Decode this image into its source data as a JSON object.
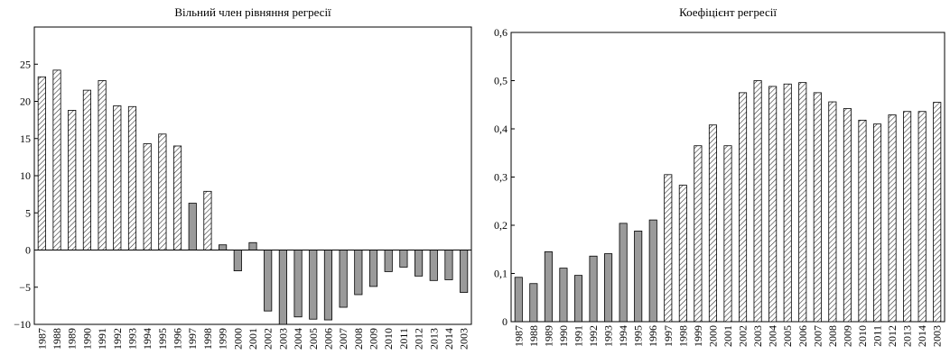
{
  "colors": {
    "grey_bar": "#9a9a9a",
    "hatch_stroke": "#333333",
    "axis": "#000000",
    "background": "#ffffff"
  },
  "chart_data": [
    {
      "type": "bar",
      "title": "Вільний член рівняння регресії",
      "xlabel": "",
      "ylabel": "",
      "ylim": [
        -10,
        30
      ],
      "yticks": [
        -10,
        -5,
        0,
        5,
        10,
        15,
        20,
        25
      ],
      "ytick_labels": [
        "−10",
        "−5",
        "0",
        "5",
        "10",
        "15",
        "20",
        "25"
      ],
      "grid": false,
      "categories": [
        "1987",
        "1988",
        "1989",
        "1990",
        "1991",
        "1992",
        "1993",
        "1994",
        "1995",
        "1996",
        "1997",
        "1998",
        "1999",
        "2000",
        "2001",
        "2002",
        "2003",
        "2004",
        "2005",
        "2006",
        "2007",
        "2008",
        "2009",
        "2010",
        "2011",
        "2012",
        "2013",
        "2014",
        "2003"
      ],
      "values": [
        23.3,
        24.2,
        18.8,
        21.5,
        22.8,
        19.4,
        19.3,
        14.3,
        15.6,
        14.0,
        6.3,
        7.9,
        0.7,
        -2.8,
        1.0,
        -8.2,
        -10.0,
        -9.0,
        -9.3,
        -9.4,
        -7.7,
        -6.0,
        -4.9,
        -2.9,
        -2.3,
        -3.5,
        -4.1,
        -4.0,
        -5.7
      ],
      "fills": [
        "hatched",
        "hatched",
        "hatched",
        "hatched",
        "hatched",
        "hatched",
        "hatched",
        "hatched",
        "hatched",
        "hatched",
        "grey",
        "hatched",
        "grey",
        "grey",
        "grey",
        "grey",
        "grey",
        "grey",
        "grey",
        "grey",
        "grey",
        "grey",
        "grey",
        "grey",
        "grey",
        "grey",
        "grey",
        "grey",
        "grey"
      ]
    },
    {
      "type": "bar",
      "title": "Коефіцієнт регресії",
      "xlabel": "",
      "ylabel": "",
      "ylim": [
        0,
        0.6
      ],
      "yticks": [
        0,
        0.1,
        0.2,
        0.3,
        0.4,
        0.5,
        0.6
      ],
      "ytick_labels": [
        "0",
        "0,1",
        "0,2",
        "0,3",
        "0,4",
        "0,5",
        "0,6"
      ],
      "grid": false,
      "categories": [
        "1987",
        "1988",
        "1989",
        "1990",
        "1991",
        "1992",
        "1993",
        "1994",
        "1995",
        "1996",
        "1997",
        "1998",
        "1999",
        "2000",
        "2001",
        "2002",
        "2003",
        "2004",
        "2005",
        "2006",
        "2007",
        "2008",
        "2009",
        "2010",
        "2011",
        "2012",
        "2013",
        "2014",
        "2003"
      ],
      "values": [
        0.092,
        0.079,
        0.145,
        0.111,
        0.096,
        0.136,
        0.141,
        0.204,
        0.188,
        0.211,
        0.305,
        0.283,
        0.365,
        0.408,
        0.365,
        0.475,
        0.5,
        0.488,
        0.493,
        0.496,
        0.475,
        0.456,
        0.442,
        0.418,
        0.41,
        0.429,
        0.436,
        0.436,
        0.455
      ],
      "fills": [
        "grey",
        "grey",
        "grey",
        "grey",
        "grey",
        "grey",
        "grey",
        "grey",
        "grey",
        "grey",
        "hatched",
        "hatched",
        "hatched",
        "hatched",
        "hatched",
        "hatched",
        "hatched",
        "hatched",
        "hatched",
        "hatched",
        "hatched",
        "hatched",
        "hatched",
        "hatched",
        "hatched",
        "hatched",
        "hatched",
        "hatched",
        "hatched"
      ]
    }
  ]
}
